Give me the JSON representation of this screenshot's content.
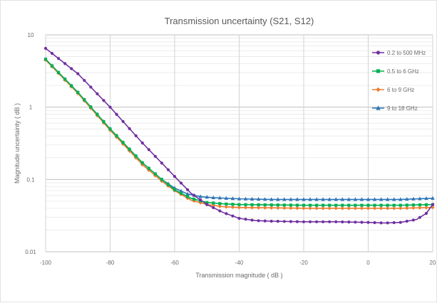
{
  "chart_data": {
    "type": "line",
    "title": "Transmission uncertainty (S21, S12)",
    "xlabel": "Transmission magnitude ( dB )",
    "ylabel": "Magnitude uncertainty ( dB )",
    "xlim": [
      -100,
      20
    ],
    "ylim": [
      0.01,
      10
    ],
    "yscale": "log",
    "xticks": [
      -100,
      -80,
      -60,
      -40,
      -20,
      0,
      20
    ],
    "xtick_labels": [
      "-100",
      "-80",
      "-60",
      "-40",
      "-20",
      "0",
      "20"
    ],
    "yticks": [
      0.01,
      0.1,
      1,
      10
    ],
    "ytick_labels": [
      "0.01",
      "0.1",
      "1",
      "10"
    ],
    "grid": true,
    "legend_position": "right",
    "series": [
      {
        "name": "0.2 to 500 MHz",
        "color": "#7030a0",
        "marker": "circle",
        "points": [
          [
            -100,
            6.5
          ],
          [
            -90,
            2.9
          ],
          [
            -80,
            1.0
          ],
          [
            -70,
            0.32
          ],
          [
            -60,
            0.11
          ],
          [
            -55,
            0.065
          ],
          [
            -50,
            0.045
          ],
          [
            -45,
            0.035
          ],
          [
            -40,
            0.029
          ],
          [
            -35,
            0.027
          ],
          [
            -30,
            0.0265
          ],
          [
            -20,
            0.026
          ],
          [
            -10,
            0.026
          ],
          [
            0,
            0.0255
          ],
          [
            5,
            0.025
          ],
          [
            10,
            0.0255
          ],
          [
            15,
            0.028
          ],
          [
            18,
            0.034
          ],
          [
            20,
            0.045
          ]
        ]
      },
      {
        "name": "0.5 to 6 GHz",
        "color": "#00b050",
        "marker": "square",
        "points": [
          [
            -100,
            4.6
          ],
          [
            -90,
            1.6
          ],
          [
            -80,
            0.5
          ],
          [
            -70,
            0.17
          ],
          [
            -64,
            0.1
          ],
          [
            -60,
            0.072
          ],
          [
            -55,
            0.055
          ],
          [
            -50,
            0.048
          ],
          [
            -45,
            0.046
          ],
          [
            -40,
            0.045
          ],
          [
            -30,
            0.0445
          ],
          [
            -20,
            0.044
          ],
          [
            -10,
            0.044
          ],
          [
            0,
            0.044
          ],
          [
            10,
            0.044
          ],
          [
            20,
            0.045
          ]
        ]
      },
      {
        "name": "6 to 9 GHz",
        "color": "#ed7d31",
        "marker": "diamond",
        "points": [
          [
            -100,
            4.5
          ],
          [
            -90,
            1.55
          ],
          [
            -80,
            0.48
          ],
          [
            -70,
            0.16
          ],
          [
            -64,
            0.095
          ],
          [
            -60,
            0.07
          ],
          [
            -55,
            0.052
          ],
          [
            -50,
            0.045
          ],
          [
            -45,
            0.042
          ],
          [
            -40,
            0.041
          ],
          [
            -30,
            0.0405
          ],
          [
            -20,
            0.04
          ],
          [
            -10,
            0.04
          ],
          [
            0,
            0.04
          ],
          [
            10,
            0.04
          ],
          [
            20,
            0.041
          ]
        ]
      },
      {
        "name": "9 to 18 GHz",
        "color": "#2e75b6",
        "marker": "triangle",
        "points": [
          [
            -100,
            4.6
          ],
          [
            -90,
            1.6
          ],
          [
            -80,
            0.5
          ],
          [
            -70,
            0.17
          ],
          [
            -64,
            0.1
          ],
          [
            -60,
            0.076
          ],
          [
            -56,
            0.063
          ],
          [
            -52,
            0.058
          ],
          [
            -48,
            0.056
          ],
          [
            -40,
            0.054
          ],
          [
            -30,
            0.053
          ],
          [
            -20,
            0.053
          ],
          [
            -10,
            0.053
          ],
          [
            0,
            0.053
          ],
          [
            10,
            0.053
          ],
          [
            20,
            0.055
          ]
        ]
      }
    ]
  }
}
